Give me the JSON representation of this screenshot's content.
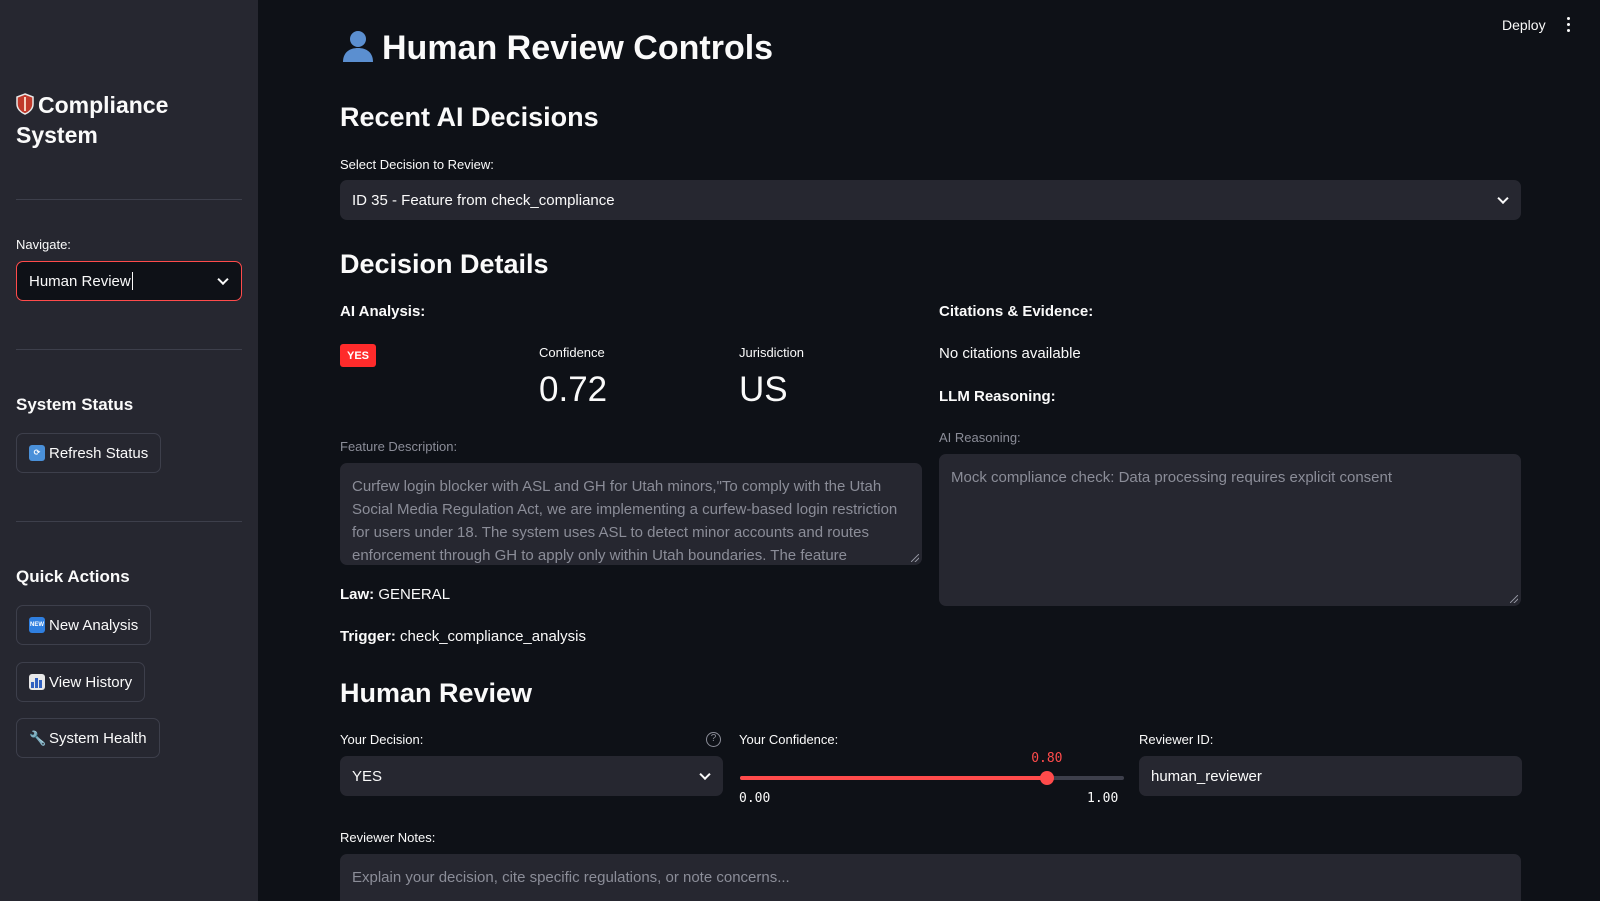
{
  "sidebar": {
    "title": "Compliance System",
    "navigate_label": "Navigate:",
    "navigate_value": "Human Review",
    "system_status_heading": "System Status",
    "refresh_button": "Refresh Status",
    "quick_actions_heading": "Quick Actions",
    "new_analysis_button": "New Analysis",
    "view_history_button": "View History",
    "system_health_button": "System Health"
  },
  "topbar": {
    "deploy": "Deploy"
  },
  "page": {
    "title": "Human Review Controls",
    "recent_heading": "Recent AI Decisions",
    "select_label": "Select Decision to Review:",
    "select_value": "ID 35 - Feature from check_compliance",
    "details_heading": "Decision Details",
    "ai_analysis_label": "AI Analysis:",
    "decision_badge": "YES",
    "confidence_label": "Confidence",
    "confidence_value": "0.72",
    "jurisdiction_label": "Jurisdiction",
    "jurisdiction_value": "US",
    "feature_desc_label": "Feature Description:",
    "feature_desc_text": "Curfew login blocker with ASL and GH for Utah minors,\"To comply with the Utah Social Media Regulation Act, we are implementing a curfew-based login restriction for users under 18. The system uses ASL to detect minor accounts and routes enforcement through GH to apply only within Utah boundaries. The feature",
    "law_label": "Law:",
    "law_value": "GENERAL",
    "trigger_label": "Trigger:",
    "trigger_value": "check_compliance_analysis",
    "citations_heading": "Citations & Evidence:",
    "citations_text": "No citations available",
    "llm_heading": "LLM Reasoning:",
    "ai_reasoning_label": "AI Reasoning:",
    "ai_reasoning_text": "Mock compliance check: Data processing requires explicit consent",
    "human_review_heading": "Human Review",
    "your_decision_label": "Your Decision:",
    "your_decision_value": "YES",
    "your_confidence_label": "Your Confidence:",
    "slider_value": "0.80",
    "slider_value_num": 0.8,
    "slider_min": "0.00",
    "slider_max": "1.00",
    "reviewer_id_label": "Reviewer ID:",
    "reviewer_id_value": "human_reviewer",
    "notes_label": "Reviewer Notes:",
    "notes_placeholder": "Explain your decision, cite specific regulations, or note concerns..."
  },
  "colors": {
    "accent": "#ff4b4b",
    "badge": "#ff2b2b",
    "background": "#0e1117",
    "sidebar": "#262730"
  }
}
